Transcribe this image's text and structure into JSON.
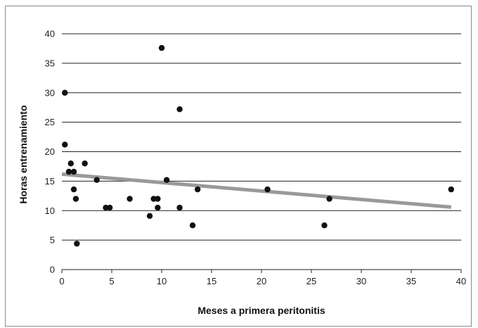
{
  "chart_data": {
    "type": "scatter",
    "xlabel": "Meses a primera peritonitis",
    "ylabel": "Horas entrenamiento",
    "xlim": [
      0,
      40
    ],
    "ylim": [
      0,
      40
    ],
    "x_ticks": [
      0,
      5,
      10,
      15,
      20,
      25,
      30,
      35,
      40
    ],
    "y_ticks": [
      0,
      5,
      10,
      15,
      20,
      25,
      30,
      35,
      40
    ],
    "grid": "horizontal",
    "points": [
      {
        "x": 0.3,
        "y": 30
      },
      {
        "x": 0.3,
        "y": 21.2
      },
      {
        "x": 0.7,
        "y": 16.6
      },
      {
        "x": 0.9,
        "y": 18
      },
      {
        "x": 1.2,
        "y": 16.6
      },
      {
        "x": 1.2,
        "y": 13.6
      },
      {
        "x": 1.4,
        "y": 12
      },
      {
        "x": 1.5,
        "y": 4.4
      },
      {
        "x": 2.3,
        "y": 18
      },
      {
        "x": 3.5,
        "y": 15.2
      },
      {
        "x": 4.4,
        "y": 10.5
      },
      {
        "x": 4.8,
        "y": 10.5
      },
      {
        "x": 6.8,
        "y": 12
      },
      {
        "x": 8.8,
        "y": 9.1
      },
      {
        "x": 9.2,
        "y": 12
      },
      {
        "x": 9.6,
        "y": 12
      },
      {
        "x": 9.6,
        "y": 10.5
      },
      {
        "x": 10.0,
        "y": 37.6
      },
      {
        "x": 10.5,
        "y": 15.2
      },
      {
        "x": 11.8,
        "y": 27.2
      },
      {
        "x": 11.8,
        "y": 10.5
      },
      {
        "x": 13.1,
        "y": 7.5
      },
      {
        "x": 13.6,
        "y": 13.6
      },
      {
        "x": 20.6,
        "y": 13.6
      },
      {
        "x": 26.3,
        "y": 7.5
      },
      {
        "x": 26.8,
        "y": 12
      },
      {
        "x": 39,
        "y": 13.6
      }
    ],
    "trendline": {
      "x": [
        0,
        39
      ],
      "y": [
        16.2,
        10.6
      ]
    },
    "colors": {
      "points": "#111111",
      "trendline": "#999999",
      "grid": "#222222"
    }
  }
}
